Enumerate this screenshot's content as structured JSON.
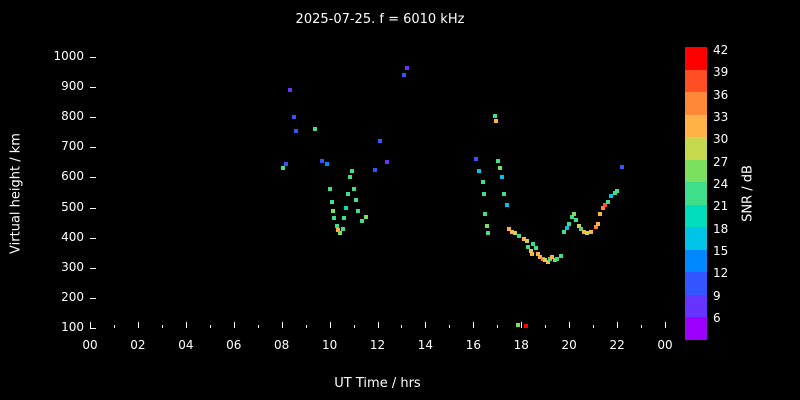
{
  "title": "2025-07-25. f = 6010 kHz",
  "axes": {
    "x_label": "UT Time / hrs",
    "y_label": "Virtual height / km",
    "x_ticks": [
      "00",
      "02",
      "04",
      "06",
      "08",
      "10",
      "12",
      "14",
      "16",
      "18",
      "20",
      "22",
      "00"
    ],
    "y_ticks": [
      "1000",
      "900",
      "800",
      "700",
      "600",
      "500",
      "400",
      "300",
      "200",
      "100"
    ]
  },
  "colorbar": {
    "label": "SNR / dB",
    "ticks": [
      "42",
      "39",
      "36",
      "33",
      "30",
      "27",
      "24",
      "21",
      "18",
      "15",
      "12",
      "9",
      "6"
    ],
    "palette": [
      {
        "snr": 6,
        "color": "#9d00ff"
      },
      {
        "snr": 9,
        "color": "#6633ff"
      },
      {
        "snr": 12,
        "color": "#3355ff"
      },
      {
        "snr": 15,
        "color": "#0088ff"
      },
      {
        "snr": 18,
        "color": "#00c3e8"
      },
      {
        "snr": 21,
        "color": "#00debc"
      },
      {
        "snr": 24,
        "color": "#3ede8a"
      },
      {
        "snr": 27,
        "color": "#7ce05f"
      },
      {
        "snr": 30,
        "color": "#c6d94e"
      },
      {
        "snr": 33,
        "color": "#ffb347"
      },
      {
        "snr": 36,
        "color": "#ff8837"
      },
      {
        "snr": 39,
        "color": "#ff4e24"
      },
      {
        "snr": 42,
        "color": "#ff0000"
      }
    ]
  },
  "chart_data": {
    "type": "scatter",
    "title": "2025-07-25. f = 6010 kHz",
    "xlabel": "UT Time / hrs",
    "ylabel": "Virtual height / km",
    "xlim": [
      0,
      24
    ],
    "ylim": [
      100,
      1000
    ],
    "color_label": "SNR / dB",
    "color_lim": [
      6,
      42
    ],
    "points_format": [
      "ut_hour",
      "virtual_height_km",
      "snr_db"
    ],
    "points": [
      [
        8.05,
        630,
        24
      ],
      [
        8.2,
        645,
        12
      ],
      [
        8.35,
        890,
        9
      ],
      [
        8.5,
        800,
        12
      ],
      [
        8.6,
        755,
        12
      ],
      [
        9.4,
        760,
        24
      ],
      [
        9.7,
        655,
        12
      ],
      [
        9.9,
        645,
        15
      ],
      [
        10.0,
        560,
        24
      ],
      [
        10.1,
        520,
        24
      ],
      [
        10.15,
        490,
        27
      ],
      [
        10.2,
        465,
        24
      ],
      [
        10.3,
        440,
        24
      ],
      [
        10.35,
        425,
        33
      ],
      [
        10.45,
        415,
        27
      ],
      [
        10.55,
        430,
        24
      ],
      [
        10.6,
        465,
        24
      ],
      [
        10.7,
        500,
        21
      ],
      [
        10.75,
        545,
        24
      ],
      [
        10.85,
        600,
        24
      ],
      [
        10.95,
        620,
        24
      ],
      [
        11.0,
        560,
        24
      ],
      [
        11.1,
        525,
        24
      ],
      [
        11.2,
        490,
        24
      ],
      [
        11.35,
        455,
        24
      ],
      [
        11.5,
        470,
        27
      ],
      [
        11.9,
        625,
        12
      ],
      [
        12.1,
        720,
        12
      ],
      [
        12.4,
        650,
        9
      ],
      [
        13.1,
        940,
        12
      ],
      [
        13.25,
        965,
        9
      ],
      [
        16.1,
        660,
        12
      ],
      [
        16.25,
        620,
        18
      ],
      [
        16.4,
        585,
        24
      ],
      [
        16.45,
        545,
        24
      ],
      [
        16.5,
        480,
        24
      ],
      [
        16.55,
        440,
        27
      ],
      [
        16.6,
        415,
        24
      ],
      [
        16.9,
        805,
        24
      ],
      [
        16.95,
        788,
        33
      ],
      [
        17.05,
        655,
        24
      ],
      [
        17.1,
        630,
        27
      ],
      [
        17.2,
        600,
        18
      ],
      [
        17.3,
        545,
        24
      ],
      [
        17.4,
        510,
        18
      ],
      [
        17.5,
        430,
        33
      ],
      [
        17.6,
        420,
        33
      ],
      [
        17.75,
        415,
        30
      ],
      [
        17.9,
        405,
        24
      ],
      [
        17.85,
        110,
        27
      ],
      [
        18.2,
        105,
        42
      ],
      [
        18.1,
        395,
        33
      ],
      [
        18.25,
        388,
        30
      ],
      [
        18.3,
        370,
        24
      ],
      [
        18.4,
        355,
        30
      ],
      [
        18.45,
        345,
        33
      ],
      [
        18.5,
        380,
        24
      ],
      [
        18.6,
        365,
        24
      ],
      [
        18.7,
        345,
        33
      ],
      [
        18.8,
        335,
        33
      ],
      [
        18.9,
        330,
        36
      ],
      [
        19.0,
        325,
        30
      ],
      [
        19.1,
        320,
        33
      ],
      [
        19.2,
        330,
        24
      ],
      [
        19.3,
        335,
        33
      ],
      [
        19.4,
        325,
        27
      ],
      [
        19.5,
        330,
        24
      ],
      [
        19.65,
        340,
        24
      ],
      [
        19.8,
        420,
        24
      ],
      [
        19.9,
        432,
        18
      ],
      [
        20.0,
        445,
        24
      ],
      [
        20.1,
        470,
        24
      ],
      [
        20.2,
        480,
        27
      ],
      [
        20.3,
        460,
        24
      ],
      [
        20.4,
        440,
        30
      ],
      [
        20.5,
        430,
        24
      ],
      [
        20.6,
        420,
        33
      ],
      [
        20.75,
        415,
        30
      ],
      [
        20.9,
        420,
        33
      ],
      [
        21.1,
        435,
        36
      ],
      [
        21.2,
        445,
        33
      ],
      [
        21.3,
        480,
        33
      ],
      [
        21.4,
        500,
        36
      ],
      [
        21.5,
        510,
        39
      ],
      [
        21.6,
        520,
        24
      ],
      [
        21.75,
        540,
        18
      ],
      [
        21.9,
        550,
        24
      ],
      [
        22.0,
        555,
        24
      ],
      [
        22.2,
        635,
        12
      ]
    ]
  }
}
